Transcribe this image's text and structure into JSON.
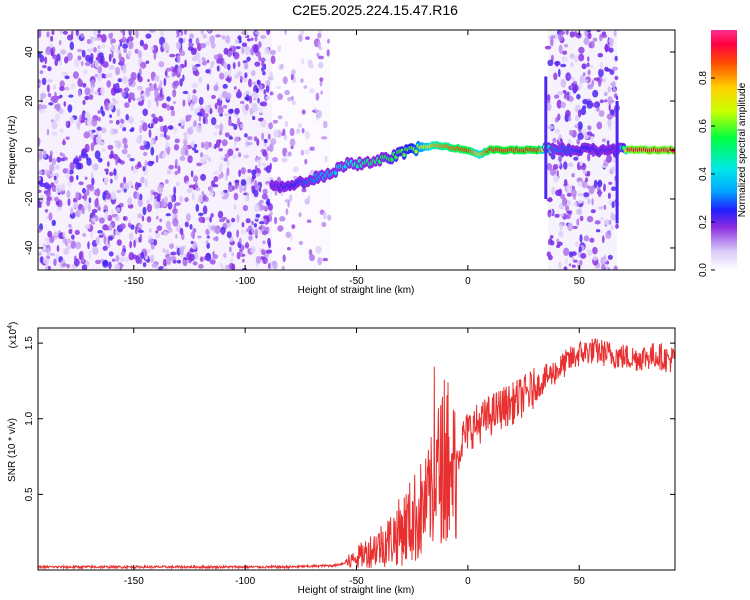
{
  "title": "C2E5.2025.224.15.47.R16",
  "chart_data": [
    {
      "type": "heatmap",
      "xlabel": "Height of straight line (km)",
      "ylabel": "Frequency (Hz)",
      "xlim": [
        -193,
        93
      ],
      "ylim": [
        -49,
        49
      ],
      "xticks": [
        -150,
        -100,
        -50,
        0,
        50
      ],
      "yticks": [
        -40,
        -20,
        0,
        20,
        40
      ],
      "colorbar": {
        "label": "Normalized spectral amplitude",
        "range": [
          0,
          1
        ],
        "ticks": [
          "0.0",
          "0.2",
          "0.4",
          "0.6",
          "0.8"
        ],
        "tick_values": [
          0.0,
          0.2,
          0.4,
          0.6,
          0.8
        ]
      },
      "noise_regions": [
        {
          "x": [
            -193,
            -88
          ],
          "density": 1.0
        },
        {
          "x": [
            -88,
            -62
          ],
          "density": 0.35
        },
        {
          "x": [
            36,
            67
          ],
          "density": 0.9
        }
      ],
      "ridge": {
        "x": [
          -88,
          -78,
          -62,
          -55,
          -45,
          -35,
          -25,
          -15,
          -8,
          0,
          5,
          10,
          20,
          32,
          38,
          68,
          72,
          93
        ],
        "y": [
          -15,
          -14,
          -10,
          -6,
          -5,
          -3,
          0,
          2,
          1,
          0,
          -2,
          0,
          0,
          0,
          0,
          0,
          0,
          0
        ],
        "amplitude": [
          0.2,
          0.25,
          0.35,
          0.4,
          0.5,
          0.55,
          0.6,
          0.8,
          0.85,
          0.9,
          0.75,
          0.9,
          0.9,
          0.9,
          0.3,
          0.2,
          0.95,
          0.95
        ]
      }
    },
    {
      "type": "line",
      "xlabel": "Height of straight line (km)",
      "ylabel": "SNR (10 * v/v)",
      "y_multiplier": "(x10",
      "y_multiplier_exp": "4",
      "y_multiplier_close": ")",
      "xlim": [
        -193,
        93
      ],
      "ylim": [
        0,
        1.6
      ],
      "xticks": [
        -150,
        -100,
        -50,
        0,
        50
      ],
      "yticks": [
        "0.5",
        "1.0",
        "1.5"
      ],
      "ytick_values": [
        0.5,
        1.0,
        1.5
      ],
      "series": [
        {
          "color": "#e83030",
          "x": [
            -193,
            -120,
            -80,
            -60,
            -54,
            -50,
            -45,
            -40,
            -35,
            -30,
            -25,
            -20,
            -15,
            -12,
            -10,
            -8,
            -5,
            -3,
            0,
            5,
            10,
            15,
            20,
            25,
            30,
            35,
            40,
            45,
            50,
            55,
            60,
            65,
            70,
            75,
            80,
            85,
            90,
            93
          ],
          "y": [
            0.02,
            0.02,
            0.02,
            0.03,
            0.05,
            0.08,
            0.12,
            0.16,
            0.2,
            0.26,
            0.33,
            0.4,
            0.55,
            0.7,
            0.62,
            0.58,
            0.72,
            0.85,
            0.92,
            0.97,
            1.02,
            1.07,
            1.1,
            1.15,
            1.2,
            1.27,
            1.32,
            1.38,
            1.43,
            1.45,
            1.44,
            1.42,
            1.41,
            1.4,
            1.41,
            1.42,
            1.39,
            1.4
          ]
        }
      ]
    }
  ]
}
